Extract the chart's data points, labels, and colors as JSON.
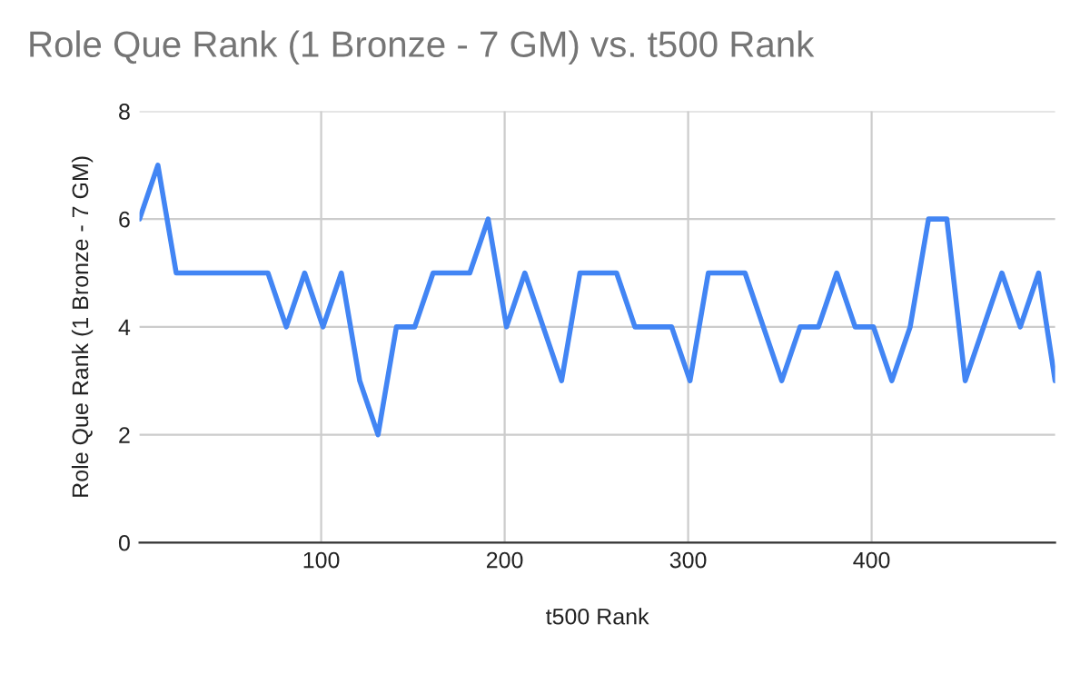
{
  "chart_data": {
    "type": "line",
    "title": "Role Que Rank (1 Bronze - 7 GM) vs. t500 Rank",
    "xlabel": "t500 Rank",
    "ylabel": "Role Que Rank (1 Bronze - 7 GM)",
    "x": [
      1,
      11,
      21,
      31,
      41,
      51,
      61,
      71,
      81,
      91,
      101,
      111,
      121,
      131,
      141,
      151,
      161,
      171,
      181,
      191,
      201,
      211,
      221,
      231,
      241,
      251,
      261,
      271,
      281,
      291,
      301,
      311,
      321,
      331,
      341,
      351,
      361,
      371,
      381,
      391,
      401,
      411,
      421,
      431,
      441,
      451,
      461,
      471,
      481,
      491,
      500
    ],
    "series": [
      {
        "color": "#4285f4",
        "values": [
          6,
          7,
          5,
          5,
          5,
          5,
          5,
          5,
          4,
          5,
          4,
          5,
          3,
          2,
          4,
          4,
          5,
          5,
          5,
          6,
          4,
          5,
          4,
          3,
          5,
          5,
          5,
          4,
          4,
          4,
          3,
          5,
          5,
          5,
          4,
          3,
          4,
          4,
          5,
          4,
          4,
          3,
          4,
          6,
          6,
          3,
          4,
          5,
          4,
          5,
          3
        ]
      }
    ],
    "xlim": [
      1,
      500
    ],
    "xticks": [
      100,
      200,
      300,
      400
    ],
    "ylim": [
      0,
      8
    ],
    "yticks": [
      0,
      2,
      4,
      6,
      8
    ],
    "grid": true,
    "legend": false,
    "marker": "none",
    "line_style": "solid"
  }
}
